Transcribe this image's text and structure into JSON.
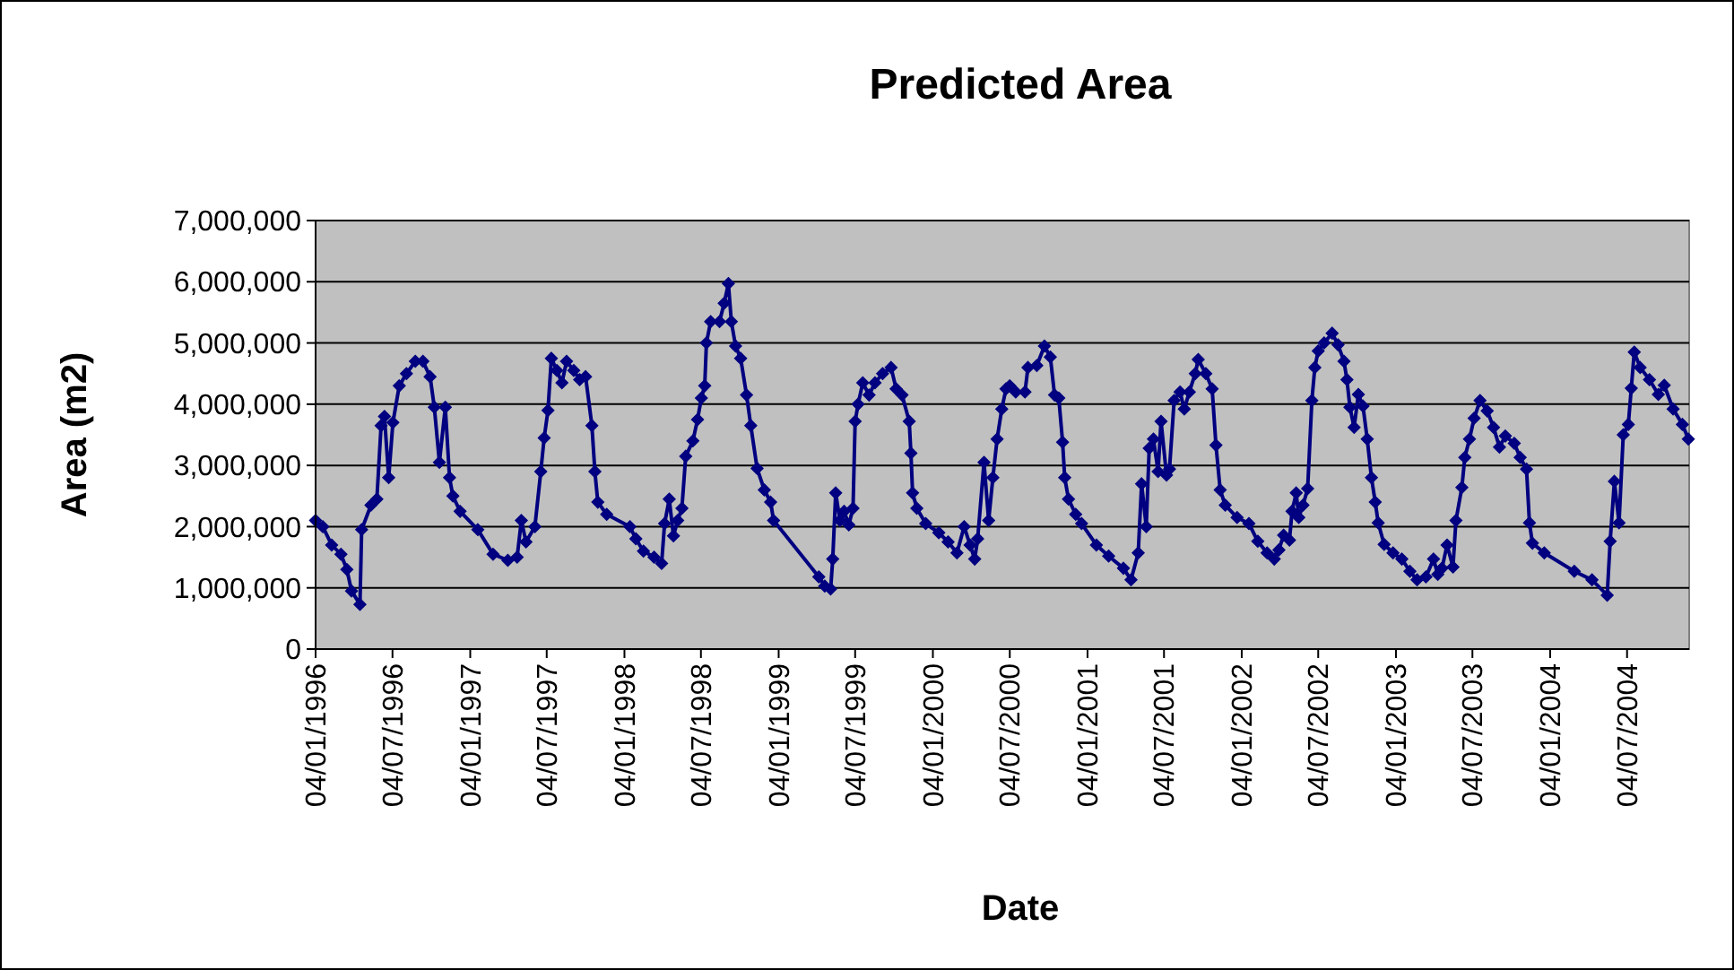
{
  "chart_data": {
    "type": "line",
    "title": "Predicted Area",
    "xlabel": "Date",
    "ylabel": "Area (m2)",
    "marker": "diamond",
    "line_style": "solid",
    "grid": "y",
    "xlim": [
      "1996-01-04",
      "2004-11-28"
    ],
    "ylim": [
      0,
      7000000
    ],
    "yticks": [
      0,
      {
        "value": 1000000,
        "label": "1,000,000"
      },
      {
        "value": 2000000,
        "label": "2,000,000"
      },
      {
        "value": 3000000,
        "label": "3,000,000"
      },
      {
        "value": 4000000,
        "label": "4,000,000"
      },
      {
        "value": 5000000,
        "label": "5,000,000"
      },
      {
        "value": 6000000,
        "label": "6,000,000"
      },
      {
        "value": 7000000,
        "label": "7,000,000"
      }
    ],
    "xticks": [
      {
        "value": "1996-01-04",
        "label": "04/01/1996"
      },
      {
        "value": "1996-07-04",
        "label": "04/07/1996"
      },
      {
        "value": "1997-01-04",
        "label": "04/01/1997"
      },
      {
        "value": "1997-07-04",
        "label": "04/07/1997"
      },
      {
        "value": "1998-01-04",
        "label": "04/01/1998"
      },
      {
        "value": "1998-07-04",
        "label": "04/07/1998"
      },
      {
        "value": "1999-01-04",
        "label": "04/01/1999"
      },
      {
        "value": "1999-07-04",
        "label": "04/07/1999"
      },
      {
        "value": "2000-01-04",
        "label": "04/01/2000"
      },
      {
        "value": "2000-07-04",
        "label": "04/07/2000"
      },
      {
        "value": "2001-01-04",
        "label": "04/01/2001"
      },
      {
        "value": "2001-07-04",
        "label": "04/07/2001"
      },
      {
        "value": "2002-01-04",
        "label": "04/01/2002"
      },
      {
        "value": "2002-07-04",
        "label": "04/07/2002"
      },
      {
        "value": "2003-01-04",
        "label": "04/01/2003"
      },
      {
        "value": "2003-07-04",
        "label": "04/07/2003"
      },
      {
        "value": "2004-01-04",
        "label": "04/01/2004"
      },
      {
        "value": "2004-07-04",
        "label": "04/07/2004"
      }
    ],
    "series": [
      {
        "color": "#000080",
        "x": [
          "1996-01-04",
          "1996-01-21",
          "1996-02-11",
          "1996-03-04",
          "1996-03-18",
          "1996-03-29",
          "1996-04-18",
          "1996-04-22",
          "1996-05-14",
          "1996-05-28",
          "1996-06-07",
          "1996-06-15",
          "1996-06-25",
          "1996-07-05",
          "1996-07-20",
          "1996-08-06",
          "1996-08-27",
          "1996-09-14",
          "1996-10-01",
          "1996-10-11",
          "1996-10-23",
          "1996-11-06",
          "1996-11-16",
          "1996-11-24",
          "1996-12-11",
          "1997-01-22",
          "1997-02-27",
          "1997-04-03",
          "1997-04-25",
          "1997-05-05",
          "1997-05-16",
          "1997-06-06",
          "1997-06-20",
          "1997-06-28",
          "1997-07-07",
          "1997-07-15",
          "1997-07-28",
          "1997-08-09",
          "1997-08-20",
          "1997-09-06",
          "1997-09-20",
          "1997-10-04",
          "1997-10-19",
          "1997-10-26",
          "1997-11-02",
          "1997-11-23",
          "1998-01-17",
          "1998-01-31",
          "1998-02-18",
          "1998-03-15",
          "1998-04-02",
          "1998-04-09",
          "1998-04-20",
          "1998-04-30",
          "1998-05-10",
          "1998-05-20",
          "1998-05-29",
          "1998-06-15",
          "1998-06-26",
          "1998-07-05",
          "1998-07-13",
          "1998-07-17",
          "1998-07-27",
          "1998-08-17",
          "1998-08-28",
          "1998-09-07",
          "1998-09-14",
          "1998-09-24",
          "1998-10-06",
          "1998-10-20",
          "1998-10-30",
          "1998-11-14",
          "1998-12-01",
          "1998-12-16",
          "1998-12-23",
          "1999-04-09",
          "1999-04-23",
          "1999-05-07",
          "1999-05-12",
          "1999-05-19",
          "1999-05-29",
          "1999-06-08",
          "1999-06-19",
          "1999-06-29",
          "1999-07-04",
          "1999-07-11",
          "1999-07-22",
          "1999-08-06",
          "1999-08-20",
          "1999-09-07",
          "1999-09-27",
          "1999-10-09",
          "1999-10-23",
          "1999-11-09",
          "1999-11-13",
          "1999-11-17",
          "1999-11-27",
          "1999-12-18",
          "2000-01-18",
          "2000-02-09",
          "2000-03-01",
          "2000-03-18",
          "2000-04-01",
          "2000-04-12",
          "2000-04-19",
          "2000-05-04",
          "2000-05-15",
          "2000-05-25",
          "2000-06-04",
          "2000-06-15",
          "2000-06-25",
          "2000-07-04",
          "2000-07-18",
          "2000-08-09",
          "2000-08-16",
          "2000-09-06",
          "2000-09-24",
          "2000-10-08",
          "2000-10-18",
          "2000-10-28",
          "2000-11-06",
          "2000-11-11",
          "2000-11-20",
          "2000-12-07",
          "2000-12-21",
          "2001-01-25",
          "2001-02-23",
          "2001-03-30",
          "2001-04-17",
          "2001-05-04",
          "2001-05-12",
          "2001-05-23",
          "2001-05-30",
          "2001-06-09",
          "2001-06-20",
          "2001-06-27",
          "2001-07-10",
          "2001-07-17",
          "2001-07-28",
          "2001-08-11",
          "2001-08-21",
          "2001-09-02",
          "2001-09-16",
          "2001-09-23",
          "2001-10-11",
          "2001-10-26",
          "2001-11-04",
          "2001-11-14",
          "2001-11-26",
          "2001-12-24",
          "2002-01-21",
          "2002-02-11",
          "2002-03-05",
          "2002-03-22",
          "2002-04-02",
          "2002-04-13",
          "2002-04-27",
          "2002-05-03",
          "2002-05-13",
          "2002-05-19",
          "2002-05-29",
          "2002-06-09",
          "2002-06-19",
          "2002-06-26",
          "2002-07-04",
          "2002-07-18",
          "2002-08-06",
          "2002-08-20",
          "2002-09-03",
          "2002-09-10",
          "2002-09-17",
          "2002-09-27",
          "2002-10-07",
          "2002-10-18",
          "2002-10-28",
          "2002-11-07",
          "2002-11-16",
          "2002-11-23",
          "2002-12-07",
          "2002-12-28",
          "2003-01-18",
          "2003-02-06",
          "2003-02-23",
          "2003-03-16",
          "2003-04-03",
          "2003-04-13",
          "2003-04-23",
          "2003-05-05",
          "2003-05-19",
          "2003-05-26",
          "2003-06-09",
          "2003-06-16",
          "2003-06-27",
          "2003-07-08",
          "2003-07-22",
          "2003-08-08",
          "2003-08-23",
          "2003-09-06",
          "2003-09-20",
          "2003-10-11",
          "2003-10-25",
          "2003-11-09",
          "2003-11-16",
          "2003-11-23",
          "2003-12-21",
          "2004-03-01",
          "2004-04-12",
          "2004-05-18",
          "2004-05-25",
          "2004-06-04",
          "2004-06-15",
          "2004-06-25",
          "2004-07-07",
          "2004-07-14",
          "2004-07-21",
          "2004-08-04",
          "2004-08-26",
          "2004-09-16",
          "2004-09-30",
          "2004-10-21",
          "2004-11-12",
          "2004-11-26"
        ],
        "values": [
          2100000,
          2000000,
          1700000,
          1550000,
          1300000,
          950000,
          730000,
          1950000,
          2350000,
          2450000,
          3650000,
          3800000,
          2800000,
          3700000,
          4300000,
          4500000,
          4700000,
          4700000,
          4450000,
          3950000,
          3050000,
          3950000,
          2800000,
          2500000,
          2250000,
          1950000,
          1550000,
          1450000,
          1500000,
          2100000,
          1750000,
          2000000,
          2900000,
          3450000,
          3900000,
          4750000,
          4550000,
          4350000,
          4700000,
          4550000,
          4400000,
          4450000,
          3650000,
          2900000,
          2400000,
          2200000,
          2000000,
          1800000,
          1600000,
          1500000,
          1400000,
          2050000,
          2450000,
          1850000,
          2100000,
          2300000,
          3150000,
          3400000,
          3750000,
          4100000,
          4300000,
          5000000,
          5350000,
          5350000,
          5650000,
          5970000,
          5350000,
          4950000,
          4750000,
          4150000,
          3650000,
          2950000,
          2600000,
          2400000,
          2100000,
          1180000,
          1030000,
          980000,
          1470000,
          2550000,
          2100000,
          2250000,
          2030000,
          2300000,
          3720000,
          4000000,
          4350000,
          4150000,
          4350000,
          4500000,
          4600000,
          4250000,
          4150000,
          3720000,
          3200000,
          2550000,
          2300000,
          2050000,
          1900000,
          1750000,
          1570000,
          2000000,
          1700000,
          1470000,
          1800000,
          3050000,
          2100000,
          2800000,
          3430000,
          3920000,
          4250000,
          4300000,
          4200000,
          4200000,
          4600000,
          4630000,
          4950000,
          4770000,
          4150000,
          4100000,
          3380000,
          2800000,
          2450000,
          2200000,
          2050000,
          1700000,
          1520000,
          1320000,
          1130000,
          1570000,
          2700000,
          2000000,
          3280000,
          3430000,
          2900000,
          3720000,
          2840000,
          2940000,
          4060000,
          4200000,
          3920000,
          4200000,
          4500000,
          4730000,
          4500000,
          4250000,
          3330000,
          2600000,
          2350000,
          2150000,
          2050000,
          1760000,
          1570000,
          1470000,
          1620000,
          1860000,
          1780000,
          2250000,
          2550000,
          2150000,
          2350000,
          2620000,
          4060000,
          4600000,
          4870000,
          5000000,
          5160000,
          4970000,
          4700000,
          4400000,
          3950000,
          3620000,
          4160000,
          3970000,
          3430000,
          2800000,
          2400000,
          2060000,
          1710000,
          1570000,
          1470000,
          1270000,
          1130000,
          1180000,
          1470000,
          1220000,
          1320000,
          1700000,
          1340000,
          2100000,
          2640000,
          3130000,
          3430000,
          3770000,
          4060000,
          3890000,
          3620000,
          3300000,
          3480000,
          3360000,
          3130000,
          2940000,
          2060000,
          1730000,
          1570000,
          1270000,
          1130000,
          880000,
          1760000,
          2740000,
          2060000,
          3500000,
          3670000,
          4260000,
          4850000,
          4600000,
          4400000,
          4160000,
          4310000,
          3920000,
          3670000,
          3430000
        ]
      }
    ]
  }
}
